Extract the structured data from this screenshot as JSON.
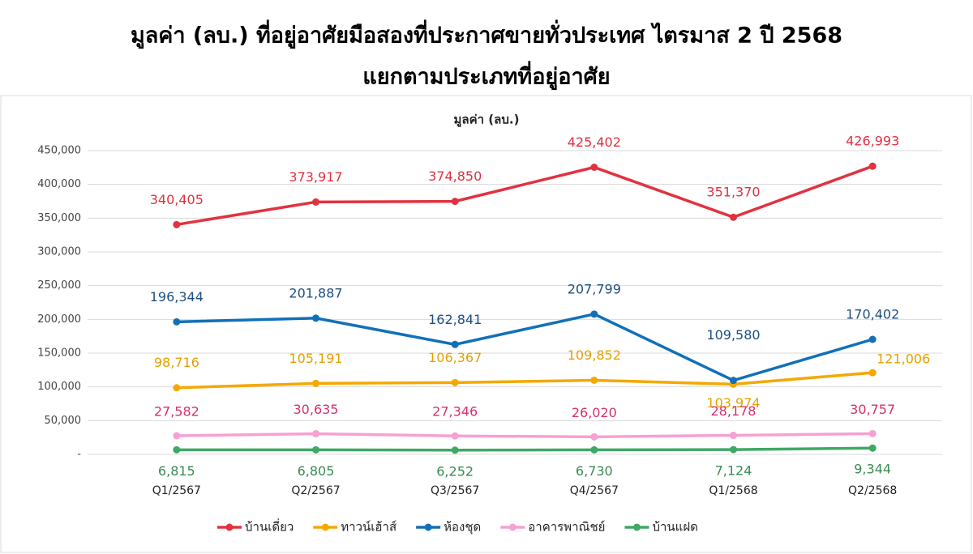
{
  "chart_data": {
    "type": "line",
    "title": "มูลค่า (ลบ.) ที่อยู่อาศัยมือสองที่ประกาศขายทั่วประเทศ ไตรมาส 2 ปี 2568",
    "title_line2": "แยกตามประเภทที่อยู่อาศัย",
    "subtitle": "มูลค่า (ลบ.)",
    "categories": [
      "Q1/2567",
      "Q2/2567",
      "Q3/2567",
      "Q4/2567",
      "Q1/2568",
      "Q2/2568"
    ],
    "series": [
      {
        "name": "บ้านเดี่ยว",
        "color": "#e2323f",
        "label_color": "#e0303f",
        "values": [
          340405,
          373917,
          374850,
          425402,
          351370,
          426993
        ],
        "value_labels": [
          "340,405",
          "373,917",
          "374,850",
          "425,402",
          "351,370",
          "426,993"
        ]
      },
      {
        "name": "ทาวน์เฮ้าส์",
        "color": "#f5a800",
        "label_color": "#e3a100",
        "values": [
          98716,
          105191,
          106367,
          109852,
          103974,
          121006
        ],
        "value_labels": [
          "98,716",
          "105,191",
          "106,367",
          "109,852",
          "103,974",
          "121,006"
        ]
      },
      {
        "name": "ห้องชุด",
        "color": "#1170b8",
        "label_color": "#1e4f80",
        "values": [
          196344,
          201887,
          162841,
          207799,
          109580,
          170402
        ],
        "value_labels": [
          "196,344",
          "201,887",
          "162,841",
          "207,799",
          "109,580",
          "170,402"
        ]
      },
      {
        "name": "อาคารพาณิชย์",
        "color": "#f7a0d2",
        "label_color": "#d6306e",
        "values": [
          27582,
          30635,
          27346,
          26020,
          28178,
          30757
        ],
        "value_labels": [
          "27,582",
          "30,635",
          "27,346",
          "26,020",
          "28,178",
          "30,757"
        ]
      },
      {
        "name": "บ้านแฝด",
        "color": "#3fa865",
        "label_color": "#3a8a50",
        "values": [
          6815,
          6805,
          6252,
          6730,
          7124,
          9344
        ],
        "value_labels": [
          "6,815",
          "6,805",
          "6,252",
          "6,730",
          "7,124",
          "9,344"
        ]
      }
    ],
    "ylim": [
      0,
      450000
    ],
    "yticks": [
      {
        "value": 0,
        "label": "-"
      },
      {
        "value": 50000,
        "label": "50,000"
      },
      {
        "value": 100000,
        "label": "100,000"
      },
      {
        "value": 150000,
        "label": "150,000"
      },
      {
        "value": 200000,
        "label": "200,000"
      },
      {
        "value": 250000,
        "label": "250,000"
      },
      {
        "value": 300000,
        "label": "300,000"
      },
      {
        "value": 350000,
        "label": "350,000"
      },
      {
        "value": 400000,
        "label": "400,000"
      },
      {
        "value": 450000,
        "label": "450,000"
      }
    ],
    "grid": true,
    "legend": "bottom"
  }
}
